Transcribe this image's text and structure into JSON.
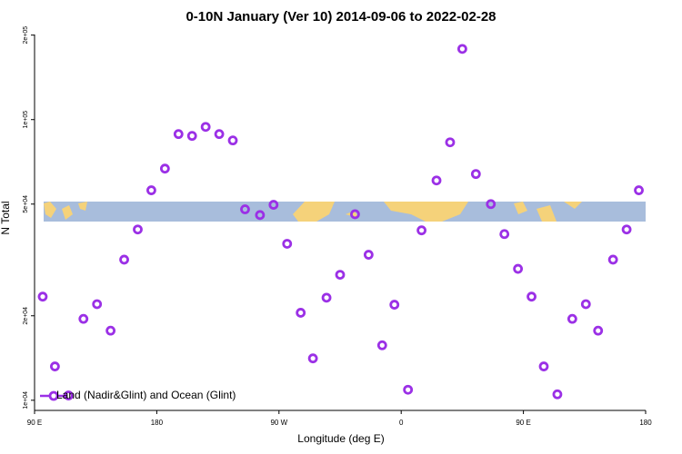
{
  "chart_data": {
    "type": "scatter",
    "title": "0-10N January (Ver 10)   2014-09-06 to 2022-02-28",
    "x_label": "Longitude (deg E)",
    "y_label": "N Total",
    "log_y": true,
    "xlim": [
      90,
      540
    ],
    "xticks": [
      {
        "value": 90,
        "label": "90 E"
      },
      {
        "value": 180,
        "label": "180"
      },
      {
        "value": 270,
        "label": "90 W"
      },
      {
        "value": 360,
        "label": "0"
      },
      {
        "value": 450,
        "label": "90 E"
      },
      {
        "value": 540,
        "label": "180"
      }
    ],
    "ylim": [
      9200,
      201000
    ],
    "yticks": [
      {
        "value": 10000,
        "label": "1e+04"
      },
      {
        "value": 20000,
        "label": "2e+04"
      },
      {
        "value": 50000,
        "label": "5e+04"
      },
      {
        "value": 100000,
        "label": "1e+05"
      },
      {
        "value": 200000,
        "label": "2e+05"
      }
    ],
    "legend": "bottom-left",
    "series": [
      {
        "name": "Land (Nadir&Glint) and Ocean (Glint)",
        "color": "#9b30e6",
        "x": [
          96,
          105,
          115,
          126,
          136,
          146,
          156,
          166,
          176,
          186,
          196,
          206,
          216,
          226,
          236,
          245,
          256,
          266,
          276,
          286,
          295,
          305,
          315,
          326,
          336,
          346,
          355,
          365,
          375,
          386,
          396,
          405,
          415,
          426,
          436,
          446,
          456,
          465,
          475,
          486,
          496,
          505,
          516,
          526,
          535
        ],
        "values": [
          23400,
          13200,
          10400,
          19500,
          22000,
          17700,
          31700,
          40600,
          56000,
          66900,
          88800,
          87500,
          94200,
          88800,
          84300,
          47900,
          45700,
          49700,
          36100,
          20500,
          14100,
          23200,
          28000,
          46000,
          33000,
          15700,
          21900,
          10900,
          40300,
          60700,
          83000,
          178600,
          64000,
          50000,
          39100,
          29400,
          23400,
          13200,
          10500,
          19500,
          22000,
          17700,
          31700,
          40600,
          56000
        ]
      }
    ]
  }
}
